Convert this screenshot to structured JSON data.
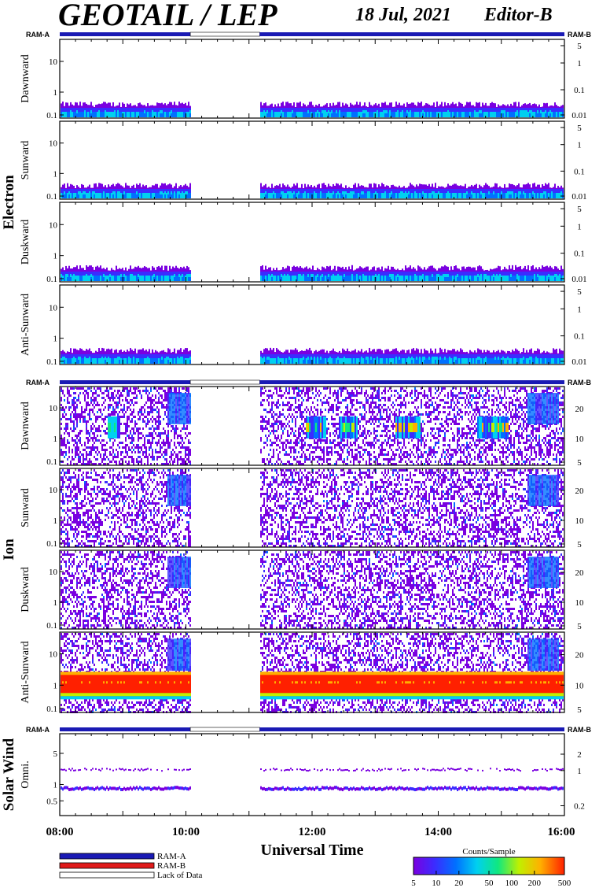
{
  "header": {
    "title": "GEOTAIL / LEP",
    "date": "18 Jul, 2021",
    "editor": "Editor-B"
  },
  "colors": {
    "ram_a": "#1a1ab4",
    "ram_b": "#e01a1a",
    "lack_of_data": "#ffffff",
    "colormap": [
      "#7a00e0",
      "#3b2cff",
      "#0070ff",
      "#00d0f0",
      "#10e880",
      "#c0f000",
      "#ffb000",
      "#ff2000"
    ]
  },
  "chart_data": {
    "type": "heatmap",
    "x_axis": {
      "label": "Universal Time",
      "ticks": [
        "08:00",
        "10:00",
        "12:00",
        "14:00",
        "16:00"
      ],
      "range_hours": [
        8,
        16
      ]
    },
    "data_gaps": [
      {
        "start_hour": 10.07,
        "end_hour": 11.17
      }
    ],
    "groups": [
      {
        "name": "Electron",
        "mode_bar": {
          "left_label": "RAM-A",
          "right_label": "RAM-B"
        },
        "panels": [
          {
            "label": "Dawnward",
            "left_ticks": [
              "10",
              "1",
              "0.1"
            ],
            "right_ticks": [
              "5",
              "1",
              "0.1",
              "0.01"
            ]
          },
          {
            "label": "Sunward",
            "left_ticks": [
              "10",
              "1",
              "0.1"
            ],
            "right_ticks": [
              "5",
              "1",
              "0.1",
              "0.01"
            ]
          },
          {
            "label": "Duskward",
            "left_ticks": [
              "10",
              "1",
              "0.1"
            ],
            "right_ticks": [
              "5",
              "1",
              "0.1",
              "0.01"
            ]
          },
          {
            "label": "Anti-Sunward",
            "left_ticks": [
              "10",
              "1",
              "0.1"
            ],
            "right_ticks": [
              "5",
              "1",
              "0.1",
              "0.01"
            ]
          }
        ]
      },
      {
        "name": "Ion",
        "mode_bar": {
          "left_label": "RAM-A",
          "right_label": "RAM-B"
        },
        "panels": [
          {
            "label": "Dawnward",
            "left_ticks": [
              "10",
              "1",
              "0.1"
            ],
            "right_ticks": [
              "20",
              "10",
              "5"
            ]
          },
          {
            "label": "Sunward",
            "left_ticks": [
              "10",
              "1",
              "0.1"
            ],
            "right_ticks": [
              "20",
              "10",
              "5"
            ]
          },
          {
            "label": "Duskward",
            "left_ticks": [
              "10",
              "1",
              "0.1"
            ],
            "right_ticks": [
              "20",
              "10",
              "5"
            ]
          },
          {
            "label": "Anti-Sunward",
            "left_ticks": [
              "10",
              "1",
              "0.1"
            ],
            "right_ticks": [
              "20",
              "10",
              "5"
            ]
          }
        ]
      },
      {
        "name": "Solar Wind",
        "mode_bar": {
          "left_label": "RAM-A",
          "right_label": "RAM-B"
        },
        "panels": [
          {
            "label": "Omni.",
            "left_ticks": [
              "5",
              "1",
              "0.5"
            ],
            "right_ticks": [
              "2",
              "1",
              "0.2"
            ]
          }
        ]
      }
    ],
    "legend": {
      "items": [
        "RAM-A",
        "RAM-B",
        "Lack of Data"
      ]
    },
    "colorbar": {
      "title": "Counts/Sample",
      "ticks": [
        "5",
        "10",
        "20",
        "50",
        "100",
        "200",
        "500"
      ],
      "scale": "log"
    }
  }
}
